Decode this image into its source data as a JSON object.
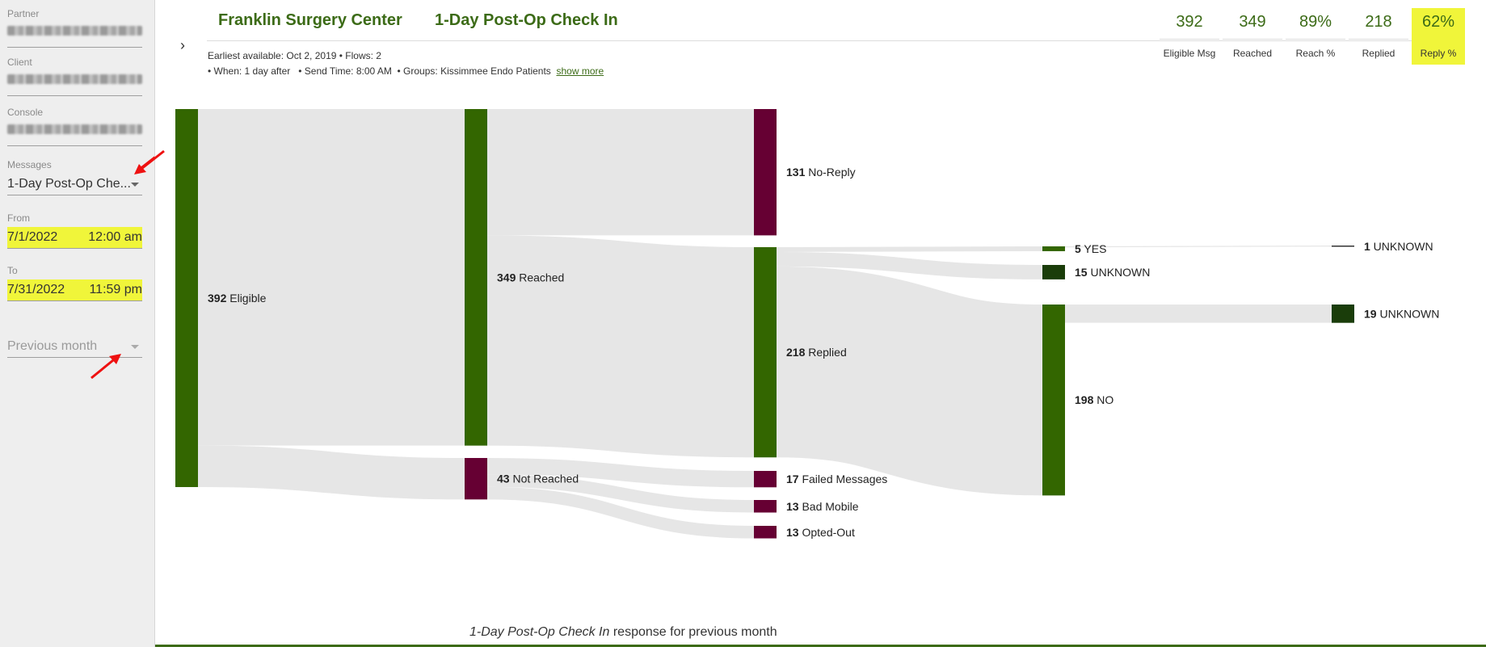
{
  "sidebar": {
    "partner": {
      "label": "Partner"
    },
    "client": {
      "label": "Client"
    },
    "console": {
      "label": "Console"
    },
    "messages": {
      "label": "Messages",
      "value": "1-Day Post-Op Che..."
    },
    "from": {
      "label": "From",
      "date": "7/1/2022",
      "time": "12:00 am"
    },
    "to": {
      "label": "To",
      "date": "7/31/2022",
      "time": "11:59 pm"
    },
    "period": {
      "value": "Previous month"
    }
  },
  "header": {
    "org": "Franklin Surgery Center",
    "message": "1-Day Post-Op Check In",
    "earliest": "Earliest available: Oct 2, 2019 • Flows: 2",
    "details": "• When: 1 day after   • Send Time: 8:00 AM  • Groups: Kissimmee Endo Patients",
    "show_more": "show more"
  },
  "stats": [
    {
      "value": "392",
      "label": "Eligible Msg"
    },
    {
      "value": "349",
      "label": "Reached"
    },
    {
      "value": "89%",
      "label": "Reach %"
    },
    {
      "value": "218",
      "label": "Replied"
    },
    {
      "value": "62%",
      "label": "Reply %"
    }
  ],
  "colors": {
    "green": "#336600",
    "maroon": "#660033",
    "dark_green": "#1a3d0a",
    "link": "#e6e6e6",
    "highlight": "#f0f53a"
  },
  "chart_data": {
    "type": "sankey",
    "nodes": [
      {
        "id": "eligible",
        "count": 392,
        "label": "Eligible",
        "color": "green"
      },
      {
        "id": "reached",
        "count": 349,
        "label": "Reached",
        "color": "green"
      },
      {
        "id": "notreached",
        "count": 43,
        "label": "Not Reached",
        "color": "maroon"
      },
      {
        "id": "noreply",
        "count": 131,
        "label": "No-Reply",
        "color": "maroon"
      },
      {
        "id": "replied",
        "count": 218,
        "label": "Replied",
        "color": "green"
      },
      {
        "id": "failed",
        "count": 17,
        "label": "Failed Messages",
        "color": "maroon"
      },
      {
        "id": "badmobile",
        "count": 13,
        "label": "Bad Mobile",
        "color": "maroon"
      },
      {
        "id": "optedout",
        "count": 13,
        "label": "Opted-Out",
        "color": "maroon"
      },
      {
        "id": "yes",
        "count": 5,
        "label": "YES",
        "color": "green"
      },
      {
        "id": "unknown15",
        "count": 15,
        "label": "UNKNOWN",
        "color": "dark_green"
      },
      {
        "id": "no",
        "count": 198,
        "label": "NO",
        "color": "green"
      },
      {
        "id": "unknown1",
        "count": 1,
        "label": "UNKNOWN",
        "color": "dark_green"
      },
      {
        "id": "unknown19",
        "count": 19,
        "label": "UNKNOWN",
        "color": "dark_green"
      }
    ],
    "links": [
      {
        "from": "eligible",
        "to": "reached",
        "value": 349
      },
      {
        "from": "eligible",
        "to": "notreached",
        "value": 43
      },
      {
        "from": "reached",
        "to": "noreply",
        "value": 131
      },
      {
        "from": "reached",
        "to": "replied",
        "value": 218
      },
      {
        "from": "notreached",
        "to": "failed",
        "value": 17
      },
      {
        "from": "notreached",
        "to": "badmobile",
        "value": 13
      },
      {
        "from": "notreached",
        "to": "optedout",
        "value": 13
      },
      {
        "from": "replied",
        "to": "yes",
        "value": 5
      },
      {
        "from": "replied",
        "to": "unknown15",
        "value": 15
      },
      {
        "from": "replied",
        "to": "no",
        "value": 198
      },
      {
        "from": "yes",
        "to": "unknown1",
        "value": 1
      },
      {
        "from": "no",
        "to": "unknown19",
        "value": 19
      }
    ]
  },
  "footer": {
    "italic": "1-Day Post-Op Check In",
    "rest": " response for previous month"
  }
}
